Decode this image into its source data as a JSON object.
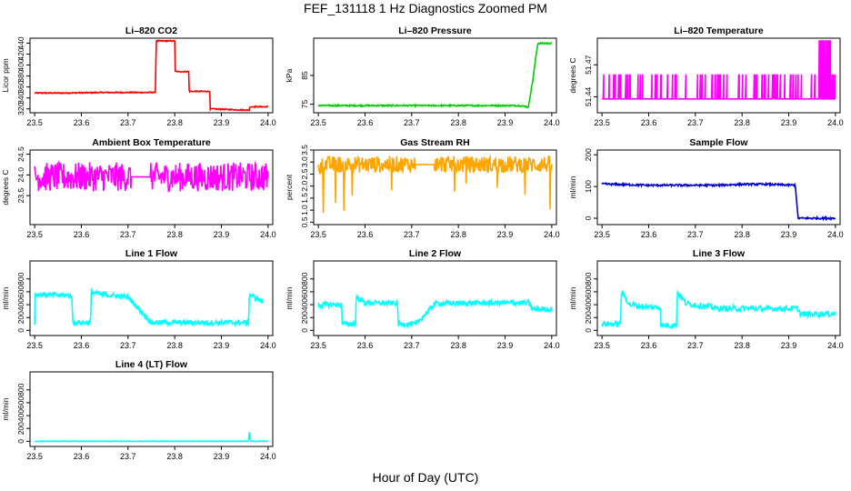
{
  "title": "FEF_131118  1 Hz Diagnostics Zoomed PM",
  "xlabel": "Hour of Day (UTC)",
  "chart_data": [
    {
      "type": "line",
      "title": "Li–820 CO2",
      "ylabel": "Licor ppm",
      "color": "#ff0000",
      "xlim": [
        23.49,
        24.01
      ],
      "ylim": [
        313,
        449
      ],
      "xticks": [
        "23.5",
        "23.6",
        "23.7",
        "23.8",
        "23.9",
        "24.0"
      ],
      "yticks": [
        "320",
        "340",
        "360",
        "380",
        "400",
        "420",
        "440"
      ],
      "noise": 1,
      "series": [
        {
          "x": [
            23.5,
            23.56,
            23.65,
            23.759,
            23.76,
            23.8,
            23.801,
            23.83,
            23.831,
            23.875,
            23.876,
            23.95,
            23.96,
            23.961,
            24.0
          ],
          "values": [
            349,
            349,
            350,
            350,
            444,
            444,
            388,
            388,
            352,
            352,
            320,
            318,
            318,
            324,
            324
          ]
        }
      ]
    },
    {
      "type": "line",
      "title": "Li–820 Pressure",
      "ylabel": "kPa",
      "color": "#00cc00",
      "xlim": [
        23.49,
        24.01
      ],
      "ylim": [
        72,
        98
      ],
      "xticks": [
        "23.5",
        "23.6",
        "23.7",
        "23.8",
        "23.9",
        "24.0"
      ],
      "yticks": [
        "75",
        "85"
      ],
      "noise": 0.25,
      "series": [
        {
          "x": [
            23.5,
            23.8,
            23.93,
            23.95,
            23.96,
            23.97,
            24.0
          ],
          "values": [
            74.5,
            74.5,
            74.5,
            74.0,
            84,
            96.2,
            96.2
          ]
        }
      ]
    },
    {
      "type": "line",
      "title": "Li–820 Temperature",
      "ylabel": "degrees C",
      "color": "#ff00ff",
      "xlim": [
        23.49,
        24.01
      ],
      "ylim": [
        51.425,
        51.495
      ],
      "xticks": [
        "23.5",
        "23.6",
        "23.7",
        "23.8",
        "23.9",
        "24.0"
      ],
      "yticks": [
        "51.44",
        "51.47"
      ],
      "pattern": "binary",
      "pattern_low": 51.438,
      "pattern_high": 51.461,
      "series": [
        {
          "x": [
            23.5,
            23.52,
            23.56,
            23.58,
            23.62,
            23.64,
            23.66,
            23.7,
            23.72,
            23.75,
            23.78,
            23.82,
            23.85,
            23.88,
            23.9,
            23.93,
            23.95,
            23.97,
            24.0
          ],
          "values": [
            51.438,
            51.461,
            51.438,
            51.461,
            51.438,
            51.461,
            51.438,
            51.461,
            51.438,
            51.461,
            51.438,
            51.461,
            51.438,
            51.461,
            51.438,
            51.461,
            51.438,
            51.49,
            51.438
          ]
        }
      ]
    },
    {
      "type": "line",
      "title": "Ambient Box Temperature",
      "ylabel": "degrees C",
      "color": "#ff00ff",
      "xlim": [
        23.49,
        24.01
      ],
      "ylim": [
        22.8,
        24.6
      ],
      "xticks": [
        "23.5",
        "23.6",
        "23.7",
        "23.8",
        "23.9",
        "24.0"
      ],
      "yticks": [
        "23.5",
        "24.0",
        "24.5"
      ],
      "noise": 0.35,
      "gap": [
        23.708,
        23.748
      ],
      "series": [
        {
          "x": [
            23.5,
            23.6,
            23.708,
            23.748,
            23.85,
            24.0
          ],
          "values": [
            23.95,
            23.95,
            23.95,
            23.95,
            23.95,
            23.95
          ]
        }
      ]
    },
    {
      "type": "line",
      "title": "Gas Stream RH",
      "ylabel": "percent",
      "color": "#ffa500",
      "xlim": [
        23.49,
        24.01
      ],
      "ylim": [
        0.4,
        3.5
      ],
      "xticks": [
        "23.5",
        "23.6",
        "23.7",
        "23.8",
        "23.9",
        "24.0"
      ],
      "yticks": [
        "0.5",
        "1.0",
        "1.5",
        "2.0",
        "2.5",
        "3.0",
        "3.5"
      ],
      "noise": 0.35,
      "gap": [
        23.708,
        23.748
      ],
      "series": [
        {
          "x": [
            23.5,
            23.6,
            23.708,
            23.748,
            23.85,
            24.0
          ],
          "values": [
            2.9,
            2.9,
            2.9,
            2.9,
            2.9,
            2.9
          ]
        }
      ]
    },
    {
      "type": "line",
      "title": "Sample Flow",
      "ylabel": "ml/min",
      "color": "#0000cd",
      "xlim": [
        23.49,
        24.01
      ],
      "ylim": [
        -20,
        215
      ],
      "xticks": [
        "23.5",
        "23.6",
        "23.7",
        "23.8",
        "23.9",
        "24.0"
      ],
      "yticks": [
        "0",
        "100",
        "200"
      ],
      "noise": 3,
      "series": [
        {
          "x": [
            23.5,
            23.6,
            23.7,
            23.75,
            23.8,
            23.85,
            23.914,
            23.92,
            23.95,
            24.0
          ],
          "values": [
            108,
            104,
            104,
            104,
            107,
            107,
            104,
            0,
            0,
            0
          ]
        }
      ]
    },
    {
      "type": "line",
      "title": "Line 1 Flow",
      "ylabel": "ml/min",
      "color": "#00ffff",
      "xlim": [
        23.49,
        24.01
      ],
      "ylim": [
        -80,
        1080
      ],
      "xticks": [
        "23.5",
        "23.6",
        "23.7",
        "23.8",
        "23.9",
        "24.0"
      ],
      "yticks": [
        "0",
        "200",
        "400",
        "600",
        "800"
      ],
      "noise": 40,
      "series": [
        {
          "x": [
            23.5,
            23.501,
            23.58,
            23.581,
            23.62,
            23.621,
            23.64,
            23.7,
            23.75,
            23.958,
            23.96,
            23.98,
            23.99
          ],
          "values": [
            120,
            560,
            540,
            120,
            120,
            600,
            560,
            520,
            120,
            120,
            560,
            480,
            440
          ]
        }
      ]
    },
    {
      "type": "line",
      "title": "Line 2 Flow",
      "ylabel": "ml/min",
      "color": "#00ffff",
      "xlim": [
        23.49,
        24.01
      ],
      "ylim": [
        -80,
        1080
      ],
      "xticks": [
        "23.5",
        "23.6",
        "23.7",
        "23.8",
        "23.9",
        "24.0"
      ],
      "yticks": [
        "0",
        "200",
        "400",
        "600",
        "800"
      ],
      "noise": 40,
      "series": [
        {
          "x": [
            23.5,
            23.55,
            23.551,
            23.58,
            23.581,
            23.6,
            23.67,
            23.671,
            23.71,
            23.75,
            23.95,
            23.96,
            24.0
          ],
          "values": [
            400,
            400,
            100,
            100,
            520,
            430,
            420,
            100,
            100,
            420,
            430,
            330,
            330
          ]
        }
      ]
    },
    {
      "type": "line",
      "title": "Line 3 Flow",
      "ylabel": "ml/min",
      "color": "#00ffff",
      "xlim": [
        23.49,
        24.01
      ],
      "ylim": [
        -80,
        1080
      ],
      "xticks": [
        "23.5",
        "23.6",
        "23.7",
        "23.8",
        "23.9",
        "24.0"
      ],
      "yticks": [
        "0",
        "200",
        "400",
        "600",
        "800"
      ],
      "noise": 45,
      "series": [
        {
          "x": [
            23.5,
            23.501,
            23.54,
            23.541,
            23.56,
            23.6,
            23.625,
            23.626,
            23.66,
            23.661,
            23.68,
            23.75,
            23.92,
            23.925,
            24.0
          ],
          "values": [
            100,
            100,
            100,
            600,
            400,
            360,
            360,
            80,
            80,
            600,
            420,
            340,
            340,
            250,
            260
          ]
        }
      ]
    },
    {
      "type": "line",
      "title": "Line 4 (LT) Flow",
      "ylabel": "ml/min",
      "color": "#00ffff",
      "xlim": [
        23.49,
        24.01
      ],
      "ylim": [
        -80,
        1080
      ],
      "xticks": [
        "23.5",
        "23.6",
        "23.7",
        "23.8",
        "23.9",
        "24.0"
      ],
      "yticks": [
        "0",
        "200",
        "400",
        "600",
        "800"
      ],
      "noise": 4,
      "series": [
        {
          "x": [
            23.5,
            23.7,
            23.958,
            23.959,
            23.961,
            23.962,
            24.0
          ],
          "values": [
            0,
            0,
            0,
            130,
            130,
            0,
            0
          ]
        }
      ]
    }
  ]
}
